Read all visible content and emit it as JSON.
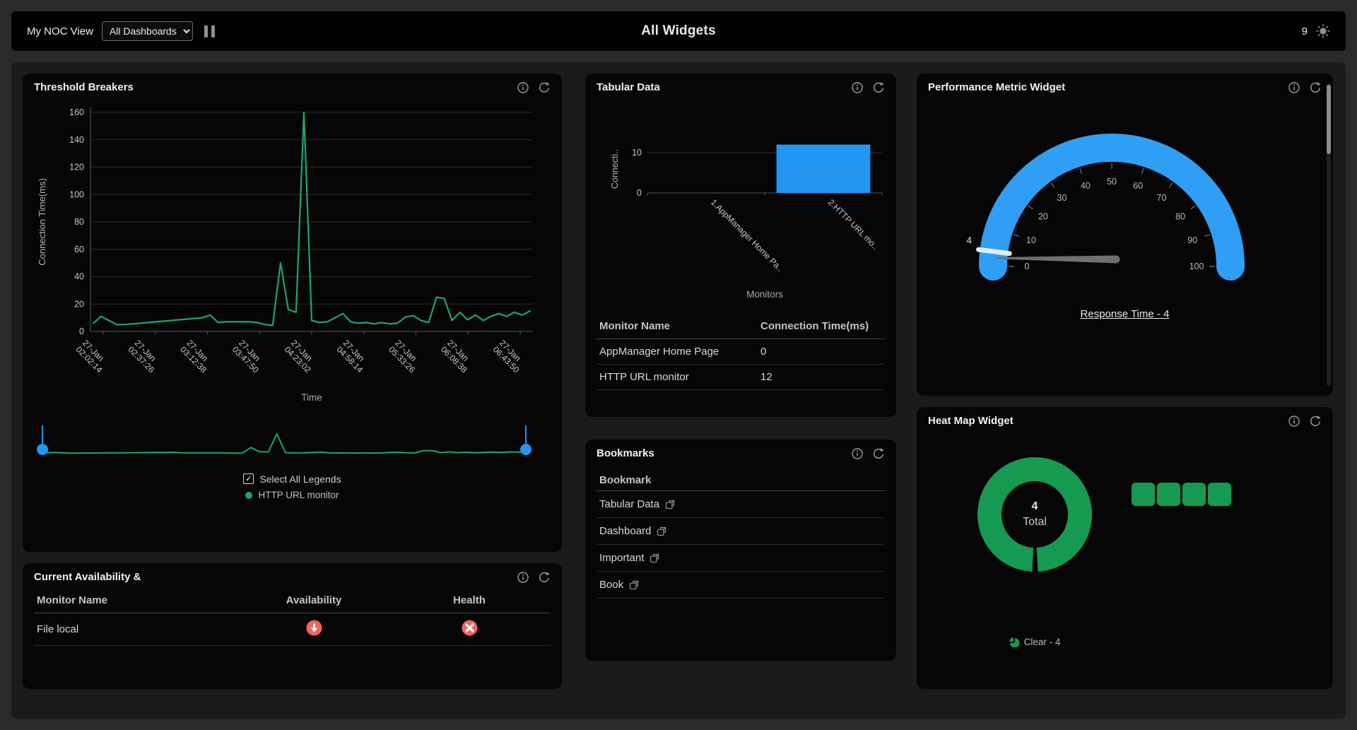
{
  "topbar": {
    "view_label": "My NOC View",
    "dashboard_select": "All Dashboards",
    "center_title": "All Widgets",
    "badge_count": "9"
  },
  "widgets": {
    "threshold": {
      "title": "Threshold Breakers",
      "legend": {
        "select_all": "Select All Legends",
        "series": "HTTP URL monitor"
      }
    },
    "availability": {
      "title": "Current Availability &",
      "columns": [
        "Monitor Name",
        "Availability",
        "Health"
      ],
      "rows": [
        {
          "name": "File local",
          "availability": "down",
          "health": "critical"
        }
      ]
    },
    "tabular": {
      "title": "Tabular Data",
      "table": {
        "columns": [
          "Monitor Name",
          "Connection Time(ms)"
        ],
        "rows": [
          [
            "AppManager Home Page",
            "0"
          ],
          [
            "HTTP URL monitor",
            "12"
          ]
        ]
      }
    },
    "bookmarks": {
      "title": "Bookmarks",
      "column": "Bookmark",
      "items": [
        "Tabular Data",
        "Dashboard",
        "Important",
        "Book"
      ]
    },
    "performance": {
      "title": "Performance Metric Widget",
      "caption": "Response Time - 4"
    },
    "heatmap": {
      "title": "Heat Map Widget",
      "center_value": "4",
      "center_label": "Total",
      "legend": "Clear - 4",
      "cell_count": 4
    }
  },
  "colors": {
    "line_green": "#1ca866",
    "donut_green": "#169a52",
    "bar_blue": "#2196f3",
    "gauge_blue": "#2f9ef5",
    "alert_red": "#f4645f",
    "grid": "#2d2d2d",
    "axis": "#555555",
    "tick_text": "#c9c9c9",
    "axis_title": "#a8a8a8"
  },
  "chart_data": [
    {
      "id": "threshold-line",
      "type": "line",
      "title": "Threshold Breakers",
      "series": [
        {
          "name": "HTTP URL monitor",
          "values": [
            6,
            11,
            8,
            5,
            5,
            5.5,
            6,
            6.5,
            7,
            7.5,
            8,
            8.5,
            9,
            9.5,
            10,
            12,
            6.5,
            7,
            7,
            7,
            7,
            6.5,
            5,
            4.5,
            50,
            16,
            14,
            160,
            8,
            6.5,
            7,
            10,
            13,
            7,
            6,
            6.5,
            5.5,
            6.5,
            5.5,
            6,
            10.5,
            11.5,
            8,
            6.5,
            25,
            24,
            8,
            14,
            8.5,
            12,
            8,
            11,
            13,
            11,
            14,
            12,
            15
          ]
        }
      ],
      "x_tick_labels": [
        "27-Jan 02:02:14",
        "27-Jan 02:37:26",
        "27-Jan 03:12:38",
        "27-Jan 03:47:50",
        "27-Jan 04:23:02",
        "27-Jan 04:58:14",
        "27-Jan 05:33:26",
        "27-Jan 06:08:38",
        "27-Jan 06:43:50"
      ],
      "xlabel": "Time",
      "ylabel": "Connection Time(ms)",
      "ylim": [
        0,
        160
      ],
      "ytick_step": 20,
      "grid": true,
      "has_range_slider": true
    },
    {
      "id": "tabular-bar",
      "type": "bar",
      "categories": [
        "1.AppManager Home Pa..",
        "2.HTTP URL mo.."
      ],
      "values": [
        0,
        12
      ],
      "xlabel": "Monitors",
      "ylabel": "Connecti..",
      "yticks": [
        0,
        10
      ],
      "ylim": [
        0,
        12
      ]
    },
    {
      "id": "performance-gauge",
      "type": "gauge",
      "min": 0,
      "max": 100,
      "value": 4,
      "tick_step": 10,
      "label": "Response Time - 4"
    },
    {
      "id": "heatmap-donut",
      "type": "pie",
      "slices": [
        {
          "label": "Clear",
          "value": 4
        }
      ],
      "total": 4,
      "center_text": [
        "4",
        "Total"
      ]
    }
  ]
}
